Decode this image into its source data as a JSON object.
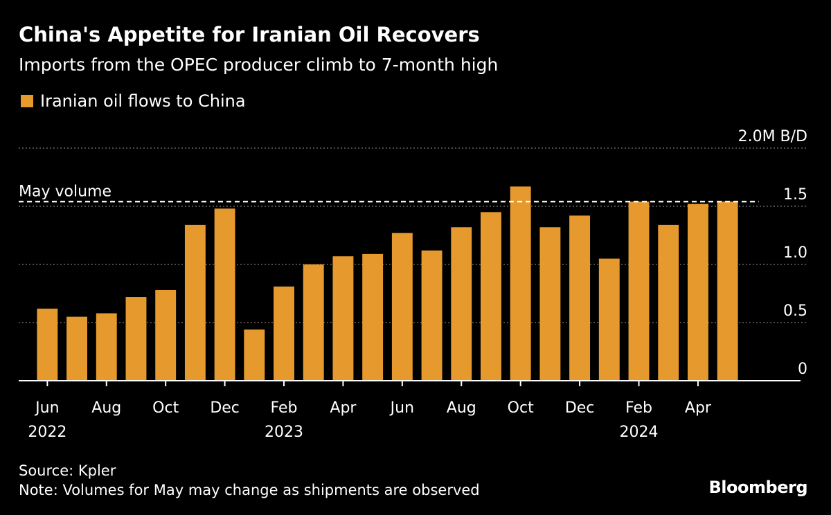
{
  "header": {
    "title": "China's Appetite for Iranian Oil Recovers",
    "subtitle": "Imports from the OPEC producer climb to 7-month high"
  },
  "legend": {
    "label": "Iranian oil flows to China",
    "color": "#e69a2e"
  },
  "footer": {
    "source": "Source: Kpler",
    "note": "Note: Volumes for May may change as shipments are observed",
    "brand": "Bloomberg"
  },
  "chart_data": {
    "type": "bar",
    "categories": [
      "2022-06",
      "2022-07",
      "2022-08",
      "2022-09",
      "2022-10",
      "2022-11",
      "2022-12",
      "2023-01",
      "2023-02",
      "2023-03",
      "2023-04",
      "2023-05",
      "2023-06",
      "2023-07",
      "2023-08",
      "2023-09",
      "2023-10",
      "2023-11",
      "2023-12",
      "2024-01",
      "2024-02",
      "2024-03",
      "2024-04",
      "2024-05"
    ],
    "series": [
      {
        "name": "Iranian oil flows to China",
        "values": [
          0.62,
          0.55,
          0.58,
          0.72,
          0.78,
          1.34,
          1.48,
          0.44,
          0.81,
          1.0,
          1.07,
          1.09,
          1.27,
          1.12,
          1.32,
          1.45,
          1.67,
          1.32,
          1.42,
          1.05,
          1.54,
          1.34,
          1.52,
          1.54
        ]
      }
    ],
    "x_tick_labels": [
      {
        "index": 0,
        "month": "Jun",
        "year": "2022"
      },
      {
        "index": 2,
        "month": "Aug",
        "year": ""
      },
      {
        "index": 4,
        "month": "Oct",
        "year": ""
      },
      {
        "index": 6,
        "month": "Dec",
        "year": ""
      },
      {
        "index": 8,
        "month": "Feb",
        "year": "2023"
      },
      {
        "index": 10,
        "month": "Apr",
        "year": ""
      },
      {
        "index": 12,
        "month": "Jun",
        "year": ""
      },
      {
        "index": 14,
        "month": "Aug",
        "year": ""
      },
      {
        "index": 16,
        "month": "Oct",
        "year": ""
      },
      {
        "index": 18,
        "month": "Dec",
        "year": ""
      },
      {
        "index": 20,
        "month": "Feb",
        "year": "2024"
      },
      {
        "index": 22,
        "month": "Apr",
        "year": ""
      }
    ],
    "y_ticks": [
      {
        "value": 0,
        "label": "0"
      },
      {
        "value": 0.5,
        "label": "0.5"
      },
      {
        "value": 1.0,
        "label": "1.0"
      },
      {
        "value": 1.5,
        "label": "1.5"
      },
      {
        "value": 2.0,
        "label": "2.0M B/D"
      }
    ],
    "ylim": [
      0,
      2.0
    ],
    "grid": true,
    "reference_line": {
      "value": 1.54,
      "label": "May volume",
      "style": "dashed"
    },
    "colors": {
      "bar": "#e69a2e",
      "grid": "#666666",
      "axis": "#ffffff",
      "reference": "#ffffff"
    }
  }
}
